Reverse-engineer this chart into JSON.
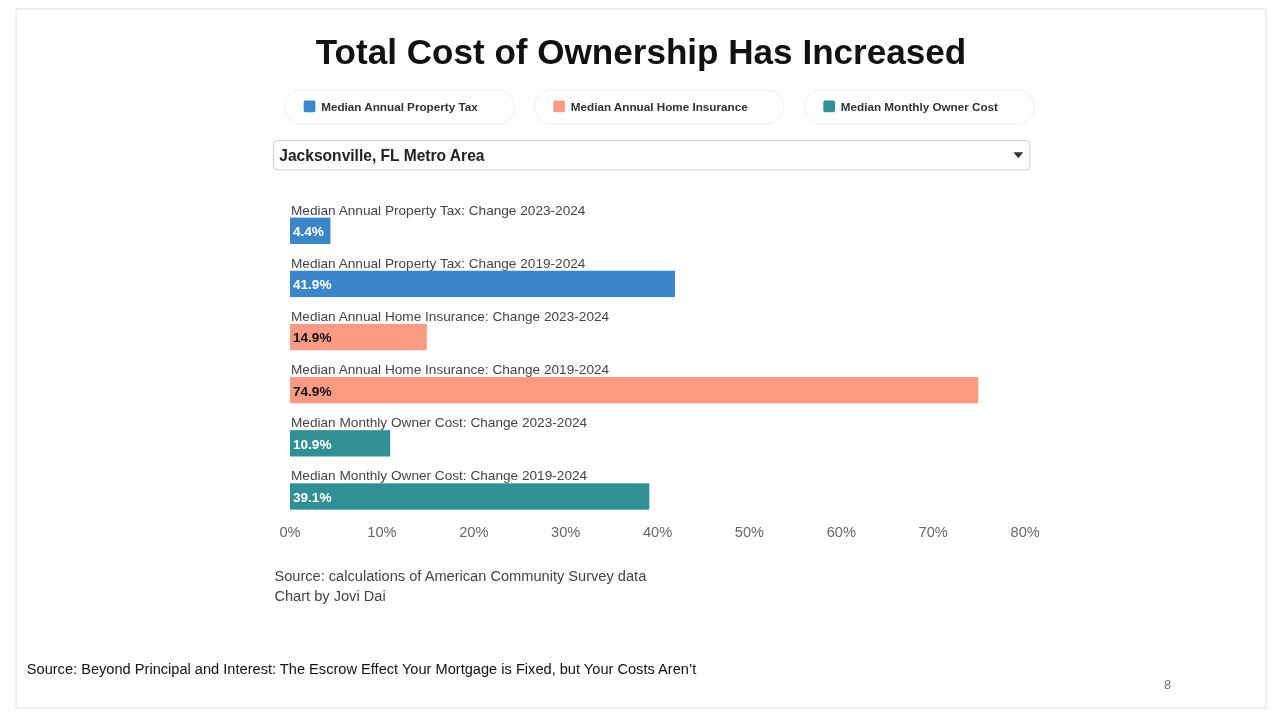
{
  "chart_data": {
    "type": "bar",
    "orientation": "horizontal",
    "title": "Total Cost of Ownership Has Increased",
    "subtitle": "Jacksonville, FL Metro Area",
    "categories": [
      "Median Annual Property Tax: Change 2023-2024",
      "Median Annual Property Tax: Change 2019-2024",
      "Median Annual Home Insurance: Change 2023-2024",
      "Median Annual Home Insurance: Change 2019-2024",
      "Median Monthly Owner Cost: Change 2023-2024",
      "Median Monthly Owner Cost: Change 2019-2024"
    ],
    "series": [
      {
        "name": "Median Annual Property Tax",
        "color": "#3a86c8",
        "values": [
          4.4,
          41.9,
          null,
          null,
          null,
          null
        ],
        "value_labels": [
          "4.4%",
          "41.9%",
          null,
          null,
          null,
          null
        ]
      },
      {
        "name": "Median Annual Home Insurance",
        "color": "#fb9b84",
        "values": [
          null,
          null,
          14.9,
          74.9,
          null,
          null
        ],
        "value_labels": [
          null,
          null,
          "14.9%",
          "74.9%",
          null,
          null
        ]
      },
      {
        "name": "Median Monthly Owner Cost",
        "color": "#2f8f95",
        "values": [
          null,
          null,
          null,
          null,
          10.9,
          39.1
        ],
        "value_labels": [
          null,
          null,
          null,
          null,
          "10.9%",
          "39.1%"
        ]
      }
    ],
    "xlim": [
      0,
      80
    ],
    "xticks": [
      {
        "value": 0,
        "label": "0%"
      },
      {
        "value": 10,
        "label": "10%"
      },
      {
        "value": 20,
        "label": "20%"
      },
      {
        "value": 30,
        "label": "30%"
      },
      {
        "value": 40,
        "label": "40%"
      },
      {
        "value": 50,
        "label": "50%"
      },
      {
        "value": 60,
        "label": "60%"
      },
      {
        "value": 70,
        "label": "70%"
      },
      {
        "value": 80,
        "label": "80%"
      }
    ],
    "grid": false,
    "legend": "top",
    "annotations": [
      "Source: calculations of American Community Survey data",
      "Chart by Jovi Dai",
      "Source: Beyond Principal and Interest: The Escrow Effect Your Mortgage is Fixed, but Your Costs Aren’t",
      "8"
    ]
  }
}
